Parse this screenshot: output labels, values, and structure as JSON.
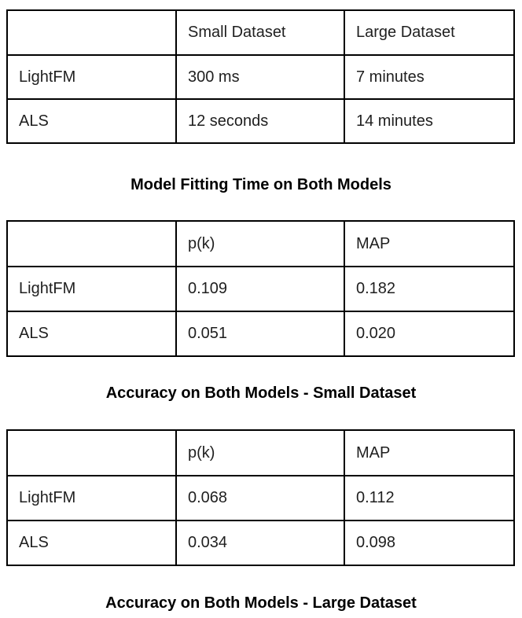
{
  "tables": [
    {
      "caption": "Model Fitting Time on Both Models",
      "header": [
        "",
        "Small Dataset",
        "Large Dataset"
      ],
      "rows": [
        [
          "LightFM",
          "300 ms",
          "7 minutes"
        ],
        [
          "ALS",
          "12 seconds",
          "14 minutes"
        ]
      ]
    },
    {
      "caption": "Accuracy on Both Models - Small Dataset",
      "header": [
        "",
        "p(k)",
        "MAP"
      ],
      "rows": [
        [
          "LightFM",
          "0.109",
          "0.182"
        ],
        [
          "ALS",
          "0.051",
          "0.020"
        ]
      ]
    },
    {
      "caption": "Accuracy on Both Models - Large Dataset",
      "header": [
        "",
        "p(k)",
        "MAP"
      ],
      "rows": [
        [
          "LightFM",
          "0.068",
          "0.112"
        ],
        [
          "ALS",
          "0.034",
          "0.098"
        ]
      ]
    }
  ]
}
